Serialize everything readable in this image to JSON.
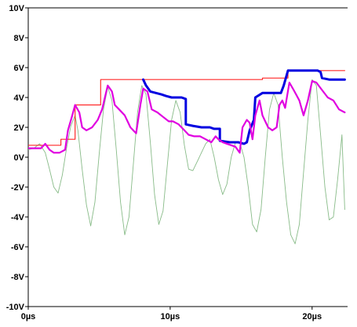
{
  "chart_data": {
    "type": "line",
    "title": "",
    "xlabel": "",
    "ylabel": "",
    "grid": false,
    "xlim": [
      0,
      22.5
    ],
    "ylim": [
      -10,
      10
    ],
    "x_ticks": [
      0,
      10,
      20
    ],
    "x_tick_labels": [
      "0µs",
      "10µs",
      "20µs"
    ],
    "y_ticks": [
      10,
      8,
      6,
      4,
      2,
      0,
      -2,
      -4,
      -6,
      -8,
      -10
    ],
    "y_tick_labels": [
      "10V",
      "8V",
      "6V",
      "4V",
      "2V",
      "0V",
      "-2V",
      "-4V",
      "-6V",
      "-8V",
      "-10V"
    ],
    "series": [
      {
        "color": "#88bb88",
        "width": 0.9,
        "x": [
          0,
          0.4,
          0.8,
          1.2,
          1.5,
          1.8,
          2.1,
          2.4,
          2.7,
          3.0,
          3.3,
          3.5,
          3.8,
          4.1,
          4.4,
          4.7,
          5.0,
          5.3,
          5.6,
          5.9,
          6.2,
          6.5,
          6.8,
          7.1,
          7.4,
          7.7,
          8.0,
          8.3,
          8.6,
          8.9,
          9.2,
          9.5,
          9.8,
          10.1,
          10.4,
          10.7,
          11.0,
          11.3,
          11.6,
          11.9,
          12.2,
          12.5,
          12.8,
          13.1,
          13.4,
          13.7,
          14.0,
          14.3,
          14.6,
          14.9,
          15.2,
          15.5,
          15.8,
          16.1,
          16.4,
          16.7,
          17.0,
          17.3,
          17.6,
          17.9,
          18.2,
          18.5,
          18.8,
          19.1,
          19.4,
          19.7,
          20.0,
          20.3,
          20.6,
          20.9,
          21.2,
          21.5,
          21.8,
          22.1,
          22.3
        ],
        "y": [
          0.5,
          0.6,
          0.9,
          0.3,
          -0.8,
          -2.0,
          -2.4,
          -1.2,
          0.6,
          2.1,
          2.8,
          1.8,
          -0.8,
          -3.2,
          -4.6,
          -3.0,
          0.2,
          3.2,
          4.7,
          3.8,
          0.5,
          -3.0,
          -5.2,
          -4.0,
          -0.5,
          3.0,
          4.8,
          4.2,
          1.0,
          -2.5,
          -4.5,
          -3.6,
          -0.5,
          2.5,
          3.8,
          3.0,
          0.8,
          -0.8,
          -0.9,
          -0.3,
          0.3,
          0.9,
          1.2,
          0.0,
          -1.5,
          -2.5,
          -1.8,
          0.0,
          1.0,
          1.0,
          0.0,
          -2.0,
          -4.5,
          -5.0,
          -3.5,
          0.0,
          3.2,
          4.3,
          3.5,
          0.0,
          -3.0,
          -5.2,
          -5.8,
          -4.5,
          -1.0,
          2.5,
          5.2,
          4.8,
          1.5,
          -2.0,
          -4.2,
          -4.0,
          -1.5,
          1.5,
          -3.5
        ]
      },
      {
        "color": "#ff2a2a",
        "width": 1.2,
        "x": [
          0,
          2.3,
          2.3,
          3.3,
          3.3,
          5.1,
          5.1,
          15.5,
          15.5,
          16.5,
          16.5,
          18.3,
          18.3,
          22.3
        ],
        "y": [
          0.8,
          0.8,
          1.2,
          1.2,
          3.5,
          3.5,
          5.2,
          5.2,
          5.2,
          5.2,
          5.3,
          5.3,
          5.8,
          5.8
        ]
      },
      {
        "color": "#0000e0",
        "width": 3,
        "x": [
          8.1,
          8.3,
          8.6,
          9.0,
          9.4,
          9.7,
          10.1,
          10.5,
          10.8,
          11.1,
          11.1,
          11.6,
          12.2,
          12.8,
          13.1,
          13.5,
          13.5,
          14.2,
          14.8,
          15.2,
          15.4,
          15.6,
          15.9,
          16.0,
          16.5,
          17.0,
          17.5,
          17.8,
          18.0,
          18.3,
          18.7,
          19.0,
          19.5,
          20.0,
          20.4,
          20.6,
          20.7,
          21.2,
          21.8,
          22.3
        ],
        "y": [
          5.2,
          4.8,
          4.4,
          4.3,
          4.2,
          4.1,
          4.0,
          4.0,
          4.0,
          3.9,
          2.2,
          2.1,
          2.0,
          2.0,
          1.9,
          1.9,
          1.1,
          1.0,
          1.0,
          0.9,
          1.0,
          1.8,
          2.5,
          4.0,
          4.3,
          4.3,
          4.3,
          4.3,
          4.8,
          5.8,
          5.8,
          5.8,
          5.8,
          5.8,
          5.8,
          5.7,
          5.3,
          5.2,
          5.2,
          5.2
        ]
      },
      {
        "color": "#e000e0",
        "width": 2.2,
        "x": [
          0,
          0.9,
          1.2,
          1.5,
          1.8,
          2.2,
          2.6,
          2.8,
          3.1,
          3.3,
          3.6,
          3.8,
          4.1,
          4.5,
          4.9,
          5.2,
          5.6,
          5.9,
          6.1,
          6.4,
          6.8,
          7.2,
          7.6,
          7.9,
          8.1,
          8.4,
          8.7,
          9.1,
          9.5,
          9.9,
          10.2,
          10.6,
          11.0,
          11.3,
          11.7,
          12.1,
          12.5,
          12.9,
          13.2,
          13.4,
          13.7,
          14.0,
          14.3,
          14.6,
          14.9,
          15.1,
          15.4,
          15.6,
          15.8,
          16.0,
          16.3,
          16.5,
          16.9,
          17.2,
          17.5,
          17.7,
          17.9,
          18.1,
          18.4,
          18.7,
          19.1,
          19.4,
          19.7,
          20.0,
          20.3,
          20.7,
          21.1,
          21.5,
          21.9,
          22.3
        ],
        "y": [
          0.6,
          0.6,
          0.9,
          0.5,
          0.3,
          0.3,
          0.5,
          1.8,
          2.8,
          3.5,
          3.0,
          2.0,
          1.8,
          2.0,
          2.5,
          3.2,
          4.8,
          4.4,
          3.5,
          3.2,
          2.8,
          2.0,
          1.6,
          3.5,
          4.6,
          4.4,
          3.2,
          3.0,
          2.7,
          2.4,
          2.4,
          2.2,
          1.8,
          1.5,
          1.4,
          1.4,
          1.2,
          1.0,
          1.4,
          1.2,
          1.0,
          0.9,
          0.8,
          0.7,
          0.3,
          2.0,
          2.5,
          2.3,
          1.2,
          2.8,
          3.8,
          2.8,
          2.0,
          1.8,
          2.0,
          3.5,
          3.8,
          3.3,
          5.0,
          4.5,
          3.8,
          2.8,
          3.8,
          5.1,
          5.0,
          4.5,
          4.0,
          3.8,
          3.2,
          3.0
        ]
      }
    ]
  }
}
